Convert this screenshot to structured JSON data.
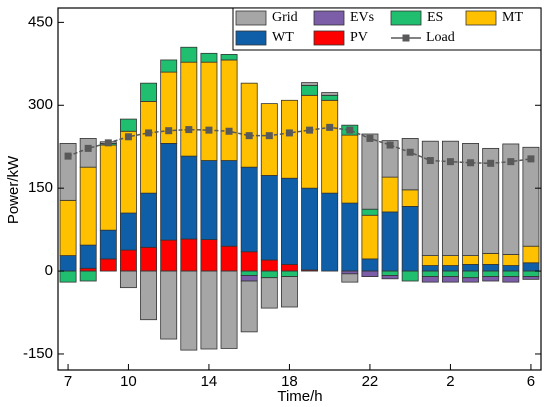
{
  "chart_data": {
    "type": "stacked_bar_line",
    "xlabel": "Time/h",
    "ylabel": "Power/kW",
    "categories": [
      "7",
      null,
      null,
      "10",
      null,
      null,
      null,
      "14",
      null,
      null,
      null,
      "18",
      null,
      null,
      null,
      "22",
      null,
      null,
      null,
      "2",
      null,
      null,
      null,
      "6"
    ],
    "series": [
      {
        "name": "PV",
        "color": "#ff0000",
        "values": [
          0,
          5,
          22,
          38,
          43,
          56,
          58,
          57,
          45,
          35,
          20,
          12,
          2,
          0,
          0,
          0,
          0,
          0,
          0,
          0,
          0,
          0,
          0,
          0
        ]
      },
      {
        "name": "WT",
        "color": "#0f5fa8",
        "values": [
          28,
          42,
          52,
          67,
          98,
          175,
          150,
          143,
          155,
          153,
          153,
          156,
          148,
          141,
          123,
          22,
          107,
          117,
          10,
          10,
          12,
          12,
          10,
          15
        ]
      },
      {
        "name": "MT",
        "color": "#ffc000",
        "values": [
          100,
          141,
          154,
          148,
          166,
          129,
          170,
          178,
          182,
          152,
          130,
          141,
          168,
          168,
          123,
          79,
          63,
          30,
          18,
          18,
          16,
          20,
          20,
          30
        ]
      },
      {
        "name": "ES",
        "color": "#1fbf6f",
        "values": [
          -20,
          -18,
          3,
          22,
          33,
          22,
          27,
          16,
          10,
          -8,
          -12,
          -10,
          18,
          9,
          18,
          11,
          -8,
          -18,
          -10,
          -10,
          -12,
          -10,
          -10,
          -10
        ]
      },
      {
        "name": "EVs",
        "color": "#7b5ea7",
        "values": [
          0,
          0,
          0,
          0,
          0,
          0,
          0,
          0,
          0,
          -10,
          0,
          0,
          0,
          0,
          -5,
          -10,
          -6,
          0,
          -10,
          -10,
          -8,
          -8,
          -10,
          -5
        ]
      },
      {
        "name": "Grid",
        "color": "#a6a6a6",
        "values": [
          103,
          52,
          3,
          -30,
          -88,
          -123,
          -143,
          -141,
          -140,
          -92,
          -55,
          -55,
          5,
          5,
          -15,
          136,
          66,
          93,
          207,
          207,
          203,
          190,
          200,
          179
        ]
      }
    ],
    "line": {
      "name": "Load",
      "color": "#595959",
      "values": [
        208,
        222,
        232,
        243,
        250,
        254,
        256,
        255,
        253,
        245,
        245,
        250,
        255,
        260,
        255,
        240,
        228,
        215,
        200,
        198,
        196,
        195,
        198,
        203
      ]
    },
    "ylim": [
      -179,
      476
    ],
    "yticks": [
      -150,
      0,
      150,
      300,
      450
    ]
  }
}
